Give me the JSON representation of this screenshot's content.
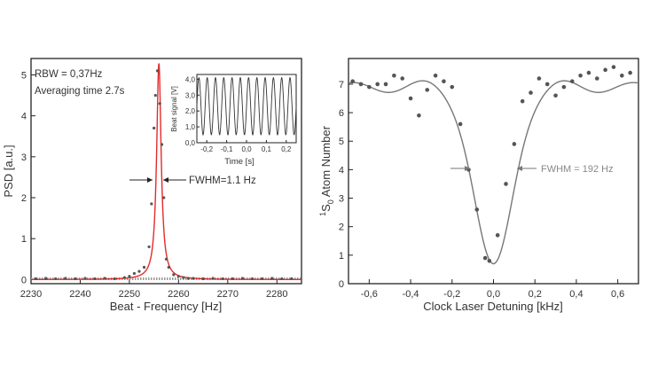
{
  "chart_data": [
    {
      "type": "line",
      "title": "",
      "xlabel": "Beat - Frequency [Hz]",
      "ylabel": "PSD [a.u.]",
      "xlim": [
        2230,
        2285
      ],
      "ylim": [
        -0.1,
        5.4
      ],
      "xticks": [
        2230,
        2240,
        2250,
        2260,
        2270,
        2280
      ],
      "yticks": [
        0,
        1,
        2,
        3,
        4,
        5
      ],
      "annotations": [
        "RBW = 0,37Hz",
        "Averaging time 2.7s",
        "FWHM=1.1 Hz"
      ],
      "series": [
        {
          "name": "Lorentzian fit",
          "color": "#e32b2b",
          "center": 2256.0,
          "fwhm": 1.1,
          "peak": 5.3
        },
        {
          "name": "measured PSD",
          "color": "#555555",
          "x": [
            2231,
            2233,
            2235,
            2237,
            2239,
            2241,
            2243,
            2245,
            2247,
            2249,
            2250,
            2251,
            2252,
            2253,
            2254,
            2254.5,
            2255,
            2255.3,
            2255.7,
            2256.2,
            2256.6,
            2257,
            2257.5,
            2258,
            2259,
            2260,
            2261,
            2262,
            2263,
            2265,
            2267,
            2269,
            2271,
            2273,
            2275,
            2277,
            2279,
            2281,
            2283
          ],
          "y": [
            0.02,
            0.03,
            0.02,
            0.03,
            0.02,
            0.03,
            0.02,
            0.03,
            0.02,
            0.05,
            0.08,
            0.15,
            0.2,
            0.3,
            0.8,
            1.85,
            3.7,
            4.5,
            5.1,
            4.3,
            3.3,
            2.0,
            0.5,
            0.3,
            0.12,
            0.08,
            0.05,
            0.03,
            0.03,
            0.02,
            0.03,
            0.02,
            0.02,
            0.03,
            0.02,
            0.02,
            0.03,
            0.02,
            0.02
          ]
        }
      ],
      "inset": {
        "type": "line",
        "xlabel": "Time [s]",
        "ylabel": "Beat signal [V]",
        "xlim": [
          -0.25,
          0.25
        ],
        "ylim": [
          0.0,
          4.3
        ],
        "xticks": [
          -0.2,
          -0.1,
          0.0,
          0.1,
          0.2
        ],
        "xtick_labels": [
          "-0,2",
          "-0,1",
          "0,0",
          "0,1",
          "0,2"
        ],
        "yticks": [
          0.0,
          1.0,
          2.0,
          3.0,
          4.0
        ],
        "ytick_labels": [
          "0,0",
          "1,0",
          "2,0",
          "3,0",
          "4,0"
        ],
        "signal": {
          "offset": 2.3,
          "amplitude": 1.8,
          "cycles": 12
        }
      }
    },
    {
      "type": "scatter",
      "title": "",
      "xlabel": "Clock Laser Detuning [kHz]",
      "ylabel_sup": "1",
      "ylabel_main": "S",
      "ylabel_sub": "0",
      "ylabel_rest": " Atom Number",
      "xlim": [
        -0.7,
        0.7
      ],
      "ylim": [
        0,
        7.9
      ],
      "xticks": [
        -0.6,
        -0.4,
        -0.2,
        0.0,
        0.2,
        0.4,
        0.6
      ],
      "xtick_labels": [
        "-0,6",
        "-0,4",
        "-0,2",
        "0,0",
        "0,2",
        "0,4",
        "0,6"
      ],
      "yticks": [
        0,
        1,
        2,
        3,
        4,
        5,
        6,
        7
      ],
      "annotations": [
        "FWHM = 192 Hz"
      ],
      "series": [
        {
          "name": "data",
          "color": "#555555",
          "x": [
            -0.68,
            -0.64,
            -0.6,
            -0.56,
            -0.52,
            -0.48,
            -0.44,
            -0.4,
            -0.36,
            -0.32,
            -0.28,
            -0.24,
            -0.2,
            -0.16,
            -0.12,
            -0.08,
            -0.04,
            -0.02,
            0.02,
            0.06,
            0.1,
            0.14,
            0.18,
            0.22,
            0.26,
            0.3,
            0.34,
            0.38,
            0.42,
            0.46,
            0.5,
            0.54,
            0.58,
            0.62,
            0.66
          ],
          "y": [
            7.1,
            7.0,
            6.9,
            7.0,
            7.0,
            7.3,
            7.2,
            6.5,
            5.9,
            6.8,
            7.3,
            7.1,
            6.9,
            5.6,
            4.0,
            2.6,
            0.9,
            0.8,
            1.7,
            3.5,
            4.9,
            6.4,
            6.7,
            7.2,
            7.0,
            6.6,
            6.9,
            7.1,
            7.3,
            7.4,
            7.2,
            7.5,
            7.6,
            7.3,
            7.4
          ]
        },
        {
          "name": "fit",
          "color": "#777777",
          "base": 6.9,
          "depth": 6.2,
          "width": 0.095,
          "ripple": 0.35
        }
      ]
    }
  ]
}
